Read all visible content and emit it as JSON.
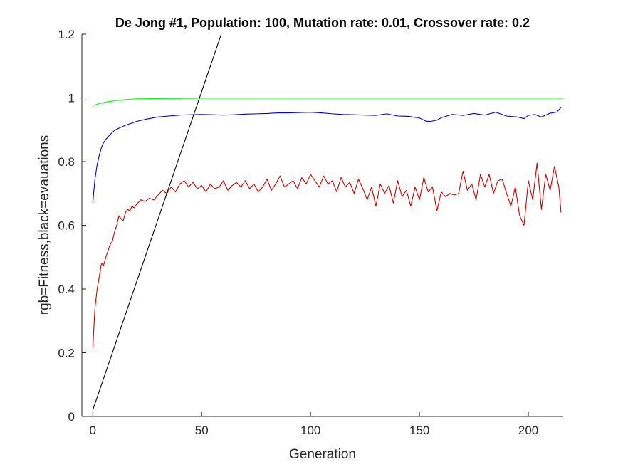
{
  "chart_data": {
    "type": "line",
    "title": "De Jong #1, Population: 100, Mutation rate: 0.01, Crossover rate: 0.2",
    "xlabel": "Generation",
    "ylabel": "rgb=Fitness,black=evauations",
    "xlim": [
      -5,
      216
    ],
    "ylim": [
      0,
      1.2
    ],
    "xticks": [
      0,
      50,
      100,
      150,
      200
    ],
    "xtick_labels": [
      "0",
      "50",
      "100",
      "150",
      "200"
    ],
    "yticks": [
      0,
      0.2,
      0.4,
      0.6,
      0.8,
      1,
      1.2
    ],
    "ytick_labels": [
      "0",
      "0.2",
      "0.4",
      "0.6",
      "0.8",
      "1",
      "1.2"
    ],
    "grid": false,
    "legend": "none",
    "series": [
      {
        "color": "#00ff00",
        "x": [
          0,
          3,
          6,
          10,
          15,
          20,
          30,
          50,
          100,
          150,
          200,
          216
        ],
        "y": [
          0.976,
          0.982,
          0.987,
          0.991,
          0.995,
          0.997,
          0.998,
          0.999,
          0.999,
          0.999,
          0.999,
          0.999
        ]
      },
      {
        "color": "#0000cc",
        "x": [
          0,
          1,
          2,
          3,
          4,
          5,
          6,
          8,
          10,
          12,
          15,
          18,
          20,
          25,
          30,
          35,
          40,
          45,
          50,
          55,
          60,
          65,
          70,
          75,
          80,
          85,
          90,
          95,
          100,
          105,
          110,
          115,
          120,
          125,
          130,
          135,
          140,
          145,
          150,
          153,
          155,
          158,
          160,
          165,
          170,
          175,
          180,
          185,
          190,
          195,
          198,
          200,
          203,
          206,
          210,
          213,
          215
        ],
        "y": [
          0.67,
          0.745,
          0.79,
          0.82,
          0.845,
          0.86,
          0.87,
          0.885,
          0.898,
          0.905,
          0.914,
          0.921,
          0.926,
          0.934,
          0.94,
          0.943,
          0.946,
          0.947,
          0.948,
          0.947,
          0.946,
          0.947,
          0.949,
          0.95,
          0.951,
          0.953,
          0.953,
          0.954,
          0.955,
          0.953,
          0.95,
          0.948,
          0.947,
          0.946,
          0.945,
          0.95,
          0.943,
          0.942,
          0.937,
          0.927,
          0.926,
          0.93,
          0.938,
          0.948,
          0.945,
          0.951,
          0.946,
          0.955,
          0.943,
          0.94,
          0.935,
          0.945,
          0.948,
          0.94,
          0.952,
          0.955,
          0.97
        ]
      },
      {
        "color": "#cc0000",
        "x": [
          0,
          1,
          2,
          3,
          4,
          5,
          6,
          7,
          8,
          9,
          10,
          11,
          12,
          13,
          14,
          15,
          16,
          17,
          18,
          19,
          20,
          22,
          24,
          26,
          28,
          30,
          32,
          34,
          36,
          38,
          40,
          42,
          44,
          46,
          48,
          50,
          52,
          54,
          56,
          58,
          60,
          62,
          64,
          66,
          68,
          70,
          72,
          74,
          76,
          78,
          80,
          82,
          84,
          86,
          88,
          90,
          92,
          94,
          96,
          98,
          100,
          102,
          104,
          106,
          108,
          110,
          112,
          114,
          116,
          118,
          120,
          122,
          124,
          126,
          128,
          130,
          132,
          134,
          136,
          138,
          140,
          142,
          144,
          146,
          148,
          150,
          152,
          154,
          156,
          158,
          160,
          162,
          164,
          166,
          168,
          170,
          172,
          174,
          176,
          178,
          180,
          182,
          184,
          186,
          188,
          190,
          192,
          194,
          196,
          198,
          200,
          202,
          204,
          206,
          208,
          210,
          212,
          214,
          215
        ],
        "y": [
          0.215,
          0.34,
          0.4,
          0.44,
          0.48,
          0.475,
          0.5,
          0.52,
          0.54,
          0.55,
          0.58,
          0.6,
          0.63,
          0.62,
          0.615,
          0.64,
          0.65,
          0.645,
          0.66,
          0.655,
          0.665,
          0.68,
          0.675,
          0.685,
          0.68,
          0.695,
          0.71,
          0.7,
          0.72,
          0.705,
          0.73,
          0.74,
          0.72,
          0.735,
          0.715,
          0.725,
          0.705,
          0.73,
          0.715,
          0.72,
          0.74,
          0.71,
          0.725,
          0.735,
          0.72,
          0.74,
          0.715,
          0.73,
          0.705,
          0.72,
          0.745,
          0.71,
          0.73,
          0.755,
          0.72,
          0.73,
          0.74,
          0.715,
          0.75,
          0.73,
          0.76,
          0.74,
          0.72,
          0.755,
          0.73,
          0.74,
          0.705,
          0.75,
          0.72,
          0.735,
          0.7,
          0.745,
          0.715,
          0.68,
          0.72,
          0.66,
          0.73,
          0.7,
          0.725,
          0.67,
          0.74,
          0.69,
          0.71,
          0.66,
          0.72,
          0.68,
          0.75,
          0.705,
          0.72,
          0.645,
          0.705,
          0.69,
          0.7,
          0.695,
          0.7,
          0.77,
          0.71,
          0.73,
          0.68,
          0.76,
          0.72,
          0.76,
          0.7,
          0.74,
          0.745,
          0.7,
          0.66,
          0.72,
          0.63,
          0.6,
          0.74,
          0.68,
          0.795,
          0.65,
          0.76,
          0.71,
          0.785,
          0.72,
          0.64
        ]
      },
      {
        "color": "#000000",
        "x": [
          0,
          59
        ],
        "y": [
          0.02,
          1.2
        ]
      }
    ]
  }
}
